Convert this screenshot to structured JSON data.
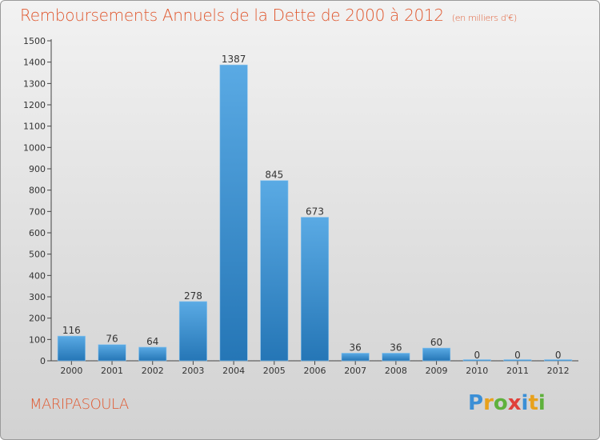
{
  "header": {
    "title": "Remboursements Annuels de la Dette de 2000 à 2012",
    "subtitle": "(en milliers d'€)"
  },
  "footer": {
    "commune": "MARIPASOULA",
    "brand_letters": [
      "P",
      "r",
      "o",
      "x",
      "i",
      "t",
      "i"
    ]
  },
  "colors": {
    "title": "#e0572e",
    "bar_top": "#5aaae4",
    "bar_bottom": "#2576b6"
  },
  "chart_data": {
    "type": "bar",
    "title": "Remboursements Annuels de la Dette de 2000 à 2012",
    "subtitle": "(en milliers d'€)",
    "categories": [
      "2000",
      "2001",
      "2002",
      "2003",
      "2004",
      "2005",
      "2006",
      "2007",
      "2008",
      "2009",
      "2010",
      "2011",
      "2012"
    ],
    "values": [
      116,
      76,
      64,
      278,
      1387,
      845,
      673,
      36,
      36,
      60,
      0,
      0,
      0
    ],
    "ylim": [
      0,
      1500
    ],
    "yticks": [
      0,
      100,
      200,
      300,
      400,
      500,
      600,
      700,
      800,
      900,
      1000,
      1100,
      1200,
      1300,
      1400,
      1500
    ],
    "grid": false,
    "legend": "none"
  }
}
